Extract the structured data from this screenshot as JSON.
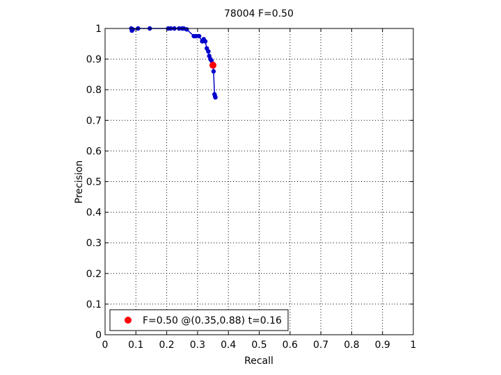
{
  "chart_data": {
    "type": "line",
    "title": "78004 F=0.50",
    "xlabel": "Recall",
    "ylabel": "Precision",
    "xlim": [
      0,
      1
    ],
    "ylim": [
      0,
      1
    ],
    "xticks": [
      "0",
      "0.1",
      "0.2",
      "0.3",
      "0.4",
      "0.5",
      "0.6",
      "0.7",
      "0.8",
      "0.9",
      "1"
    ],
    "yticks": [
      "0",
      "0.1",
      "0.2",
      "0.3",
      "0.4",
      "0.5",
      "0.6",
      "0.7",
      "0.8",
      "0.9",
      "1"
    ],
    "grid": true,
    "legend_position": "bottom-left",
    "colors": {
      "curve": "#0000cc",
      "best_point": "#ff0000"
    },
    "series": [
      {
        "x": [
          0.085,
          0.087,
          0.09,
          0.107,
          0.145,
          0.205,
          0.213,
          0.225,
          0.24,
          0.25,
          0.255,
          0.265,
          0.288,
          0.295,
          0.305,
          0.315,
          0.32,
          0.325,
          0.33,
          0.335,
          0.338,
          0.342,
          0.345,
          0.35,
          0.352,
          0.355,
          0.357,
          0.358
        ],
        "y": [
          1.0,
          0.993,
          0.997,
          1.0,
          1.0,
          1.0,
          1.0,
          1.0,
          1.0,
          1.0,
          1.0,
          0.997,
          0.975,
          0.975,
          0.975,
          0.958,
          0.965,
          0.958,
          0.935,
          0.925,
          0.91,
          0.9,
          0.895,
          0.885,
          0.86,
          0.785,
          0.778,
          0.775
        ]
      }
    ],
    "best_point": {
      "x": 0.35,
      "y": 0.88,
      "label": "F=0.50 @(0.35,0.88) t=0.16"
    }
  }
}
